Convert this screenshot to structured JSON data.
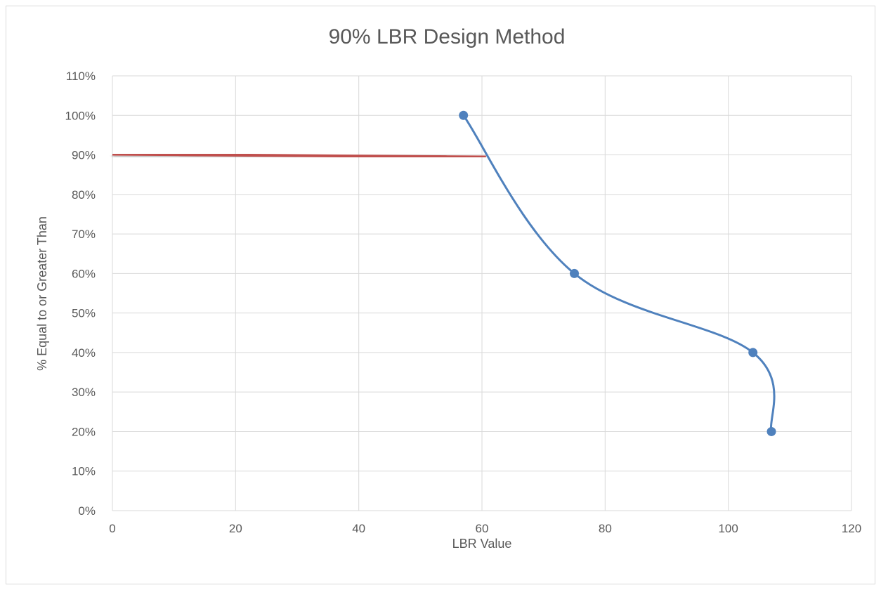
{
  "chart_data": {
    "type": "scatter",
    "title": "90% LBR Design Method",
    "xlabel": "LBR Value",
    "ylabel": "% Equal to or Greater Than",
    "xlim": [
      0,
      120
    ],
    "ylim": [
      0,
      110
    ],
    "xticks": [
      0,
      20,
      40,
      60,
      80,
      100,
      120
    ],
    "yticks": [
      0,
      10,
      20,
      30,
      40,
      50,
      60,
      70,
      80,
      90,
      100,
      110
    ],
    "ytick_labels": [
      "0%",
      "10%",
      "20%",
      "30%",
      "40%",
      "50%",
      "60%",
      "70%",
      "80%",
      "90%",
      "100%",
      "110%"
    ],
    "grid": true,
    "smooth": true,
    "series": [
      {
        "x": [
          57,
          75,
          104,
          107
        ],
        "y": [
          100,
          60,
          40,
          20
        ],
        "color": "#4f81bd"
      }
    ],
    "reference_lines": {
      "color": "#c0504d",
      "design_value": 61,
      "design_percent": 90
    }
  }
}
